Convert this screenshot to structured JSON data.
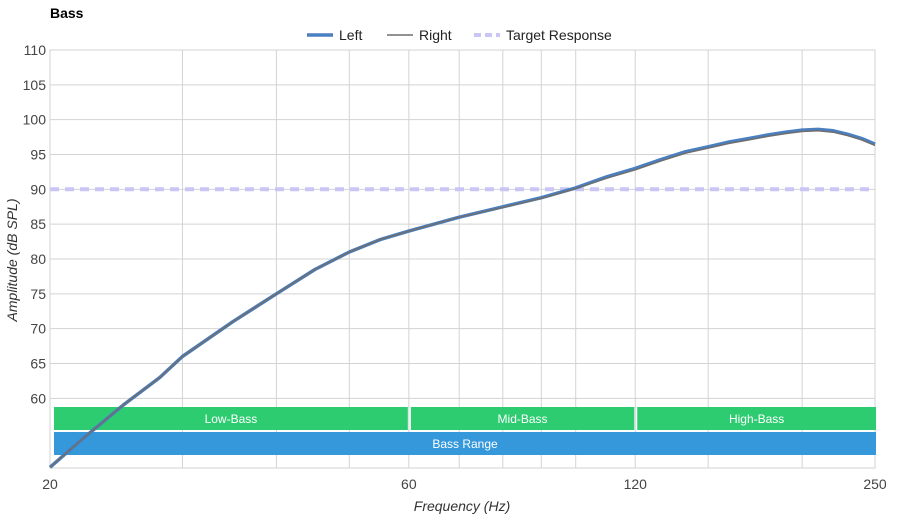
{
  "chart_data": {
    "type": "line",
    "title": "Bass",
    "xlabel": "Frequency (Hz)",
    "ylabel": "Amplitude (dB SPL)",
    "x_scale": "log",
    "xlim": [
      20,
      250
    ],
    "ylim": [
      50,
      110
    ],
    "x_tick_labels": [
      "20",
      "60",
      "120",
      "250"
    ],
    "x_ticks": [
      20,
      60,
      120,
      250
    ],
    "y_ticks": [
      60,
      65,
      70,
      75,
      80,
      85,
      90,
      95,
      100,
      105,
      110
    ],
    "x_minor_grid": [
      30,
      40,
      50,
      70,
      80,
      90,
      100,
      150,
      200
    ],
    "grid": true,
    "legend_position": "top-center",
    "series": [
      {
        "name": "Left",
        "color": "#4a7fc1",
        "style": "solid-thick",
        "points": [
          [
            20,
            50.1
          ],
          [
            22,
            54.0
          ],
          [
            25,
            59.0
          ],
          [
            28,
            63.0
          ],
          [
            30,
            66.0
          ],
          [
            35,
            71.0
          ],
          [
            40,
            75.0
          ],
          [
            45,
            78.5
          ],
          [
            50,
            81.0
          ],
          [
            55,
            82.8
          ],
          [
            60,
            84.0
          ],
          [
            70,
            86.0
          ],
          [
            80,
            87.5
          ],
          [
            90,
            88.8
          ],
          [
            100,
            90.2
          ],
          [
            110,
            91.8
          ],
          [
            120,
            93.0
          ],
          [
            130,
            94.3
          ],
          [
            140,
            95.4
          ],
          [
            150,
            96.1
          ],
          [
            160,
            96.8
          ],
          [
            170,
            97.3
          ],
          [
            180,
            97.8
          ],
          [
            190,
            98.2
          ],
          [
            200,
            98.5
          ],
          [
            210,
            98.6
          ],
          [
            220,
            98.4
          ],
          [
            230,
            97.9
          ],
          [
            240,
            97.3
          ],
          [
            250,
            96.5
          ]
        ]
      },
      {
        "name": "Right",
        "color": "#6e6e6e",
        "style": "solid-thin",
        "points": [
          [
            20,
            50.1
          ],
          [
            22,
            54.0
          ],
          [
            25,
            59.0
          ],
          [
            28,
            63.0
          ],
          [
            30,
            66.0
          ],
          [
            35,
            71.0
          ],
          [
            40,
            75.0
          ],
          [
            45,
            78.5
          ],
          [
            50,
            81.0
          ],
          [
            55,
            82.8
          ],
          [
            60,
            84.0
          ],
          [
            70,
            86.0
          ],
          [
            80,
            87.4
          ],
          [
            90,
            88.7
          ],
          [
            100,
            90.1
          ],
          [
            110,
            91.6
          ],
          [
            120,
            92.8
          ],
          [
            130,
            94.1
          ],
          [
            140,
            95.2
          ],
          [
            150,
            95.9
          ],
          [
            160,
            96.6
          ],
          [
            170,
            97.1
          ],
          [
            180,
            97.6
          ],
          [
            190,
            98.0
          ],
          [
            200,
            98.3
          ],
          [
            210,
            98.4
          ],
          [
            220,
            98.2
          ],
          [
            230,
            97.7
          ],
          [
            240,
            97.1
          ],
          [
            250,
            96.3
          ]
        ]
      },
      {
        "name": "Target Response",
        "color": "#c9c6f5",
        "style": "dashed",
        "points": [
          [
            20,
            90
          ],
          [
            250,
            90
          ]
        ]
      }
    ],
    "bands": [
      {
        "label": "Low-Bass",
        "from": 20,
        "to": 60,
        "row": 0,
        "color": "#2ecc71"
      },
      {
        "label": "Mid-Bass",
        "from": 60,
        "to": 120,
        "row": 0,
        "color": "#2ecc71"
      },
      {
        "label": "High-Bass",
        "from": 120,
        "to": 250,
        "row": 0,
        "color": "#2ecc71"
      },
      {
        "label": "Bass Range",
        "from": 20,
        "to": 250,
        "row": 1,
        "color": "#3498db"
      }
    ]
  }
}
